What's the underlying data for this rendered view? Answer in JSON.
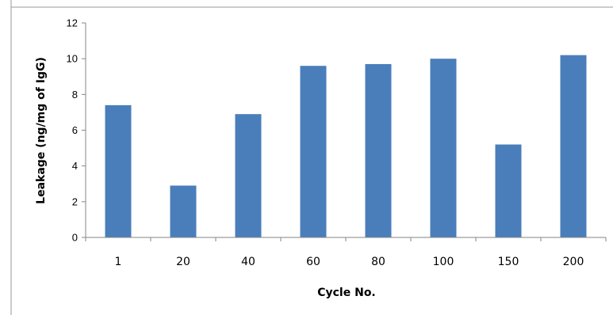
{
  "chart_data": {
    "type": "bar",
    "title": "",
    "xlabel": "Cycle No.",
    "ylabel": "Leakage (ng/mg of IgG)",
    "categories": [
      "1",
      "20",
      "40",
      "60",
      "80",
      "100",
      "150",
      "200"
    ],
    "series": [
      {
        "values": [
          7.4,
          2.9,
          6.9,
          9.6,
          9.7,
          10.0,
          5.2,
          10.2
        ],
        "color": "#4a7ebb"
      }
    ],
    "ylim": [
      0,
      12
    ],
    "yticks": [
      0,
      2,
      4,
      6,
      8,
      10,
      12
    ],
    "grid": false,
    "legend": "none",
    "axis_color": "#868686",
    "border_color": "#9a9a9a"
  }
}
